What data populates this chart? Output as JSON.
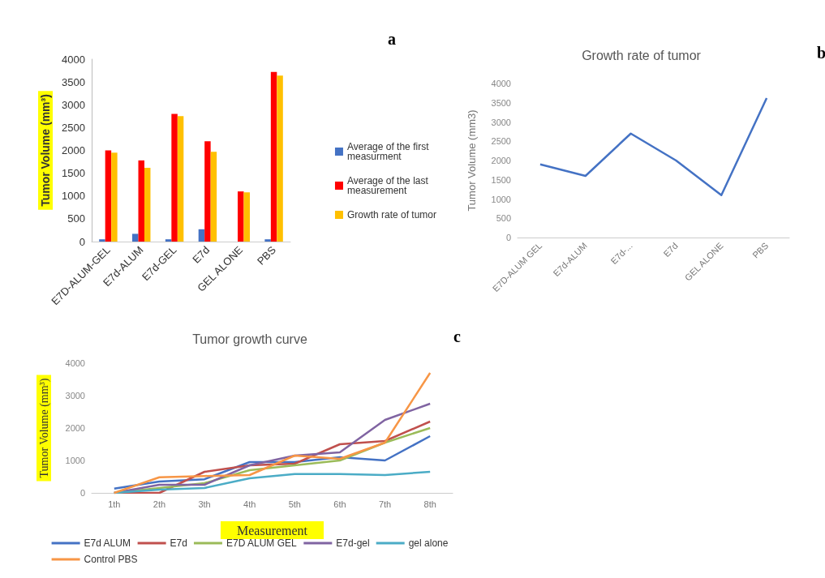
{
  "chart_data": [
    {
      "type": "bar",
      "annotations": [
        "a"
      ],
      "ylabel": "Tumor Volume (mm³)",
      "categories": [
        "E7D-ALUM-GEL",
        "E7d-ALUM",
        "E7d-GEL",
        "E7d",
        "GEL ALONE",
        "PBS"
      ],
      "ylim": [
        0,
        4000
      ],
      "yticks": [
        0,
        500,
        1000,
        1500,
        2000,
        2500,
        3000,
        3500,
        4000
      ],
      "legend": "right",
      "series": [
        {
          "name": "Average of the first measurment",
          "color": "#4472c4",
          "values": [
            50,
            170,
            50,
            270,
            null,
            50
          ]
        },
        {
          "name": "Average of the last measurement",
          "color": "#ff0000",
          "values": [
            2000,
            1780,
            2800,
            2200,
            1100,
            3720
          ]
        },
        {
          "name": "Growth rate of tumor",
          "color": "#ffc000",
          "values": [
            1950,
            1620,
            2750,
            1970,
            1080,
            3640
          ]
        }
      ]
    },
    {
      "type": "line",
      "title": "Growth rate of tumor",
      "annotations": [
        "b"
      ],
      "ylabel": "Tumor Volume (mm3)",
      "categories": [
        "E7D-ALUM GEL",
        "E7d-ALUM",
        "E7d-...",
        "E7d",
        "GEL ALONE",
        "PBS"
      ],
      "ylim": [
        0,
        4000
      ],
      "yticks": [
        0,
        500,
        1000,
        1500,
        2000,
        2500,
        3000,
        3500,
        4000
      ],
      "marker": "none",
      "series": [
        {
          "color": "#4472c4",
          "values": [
            1900,
            1600,
            2700,
            2000,
            1100,
            3620
          ]
        }
      ]
    },
    {
      "type": "line",
      "title": "Tumor growth curve",
      "annotations": [
        "c"
      ],
      "ylabel": "Tumor Volume (mm³)",
      "xlabel": "Measurement",
      "categories": [
        "1th",
        "2th",
        "3th",
        "4th",
        "5th",
        "6th",
        "7th",
        "8th"
      ],
      "ylim": [
        0,
        4000
      ],
      "yticks": [
        0,
        1000,
        2000,
        3000,
        4000
      ],
      "marker": "none",
      "legend": "bottom",
      "series": [
        {
          "name": "E7d ALUM",
          "color": "#4472c4",
          "values": [
            130,
            350,
            420,
            950,
            950,
            1100,
            1000,
            1750
          ]
        },
        {
          "name": "E7d",
          "color": "#c0504d",
          "values": [
            0,
            0,
            650,
            850,
            900,
            1500,
            1600,
            2200
          ]
        },
        {
          "name": "E7D ALUM GEL",
          "color": "#9bbb59",
          "values": [
            0,
            150,
            300,
            700,
            850,
            1000,
            1550,
            2000
          ]
        },
        {
          "name": "E7d-gel",
          "color": "#8064a2",
          "values": [
            0,
            250,
            250,
            850,
            1150,
            1250,
            2250,
            2750
          ]
        },
        {
          "name": "gel alone",
          "color": "#4bacc6",
          "values": [
            0,
            100,
            150,
            450,
            580,
            580,
            550,
            650
          ]
        },
        {
          "name": "Control PBS",
          "color": "#f79646",
          "values": [
            0,
            480,
            520,
            550,
            1150,
            1050,
            1550,
            3700
          ]
        }
      ]
    }
  ]
}
